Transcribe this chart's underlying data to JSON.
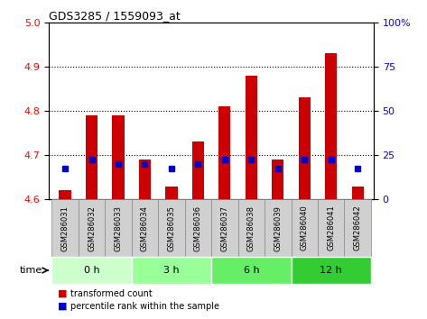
{
  "title": "GDS3285 / 1559093_at",
  "samples": [
    "GSM286031",
    "GSM286032",
    "GSM286033",
    "GSM286034",
    "GSM286035",
    "GSM286036",
    "GSM286037",
    "GSM286038",
    "GSM286039",
    "GSM286040",
    "GSM286041",
    "GSM286042"
  ],
  "transformed_count": [
    4.62,
    4.79,
    4.79,
    4.69,
    4.63,
    4.73,
    4.81,
    4.88,
    4.69,
    4.83,
    4.93,
    4.63
  ],
  "percentile_rank": [
    4.67,
    4.69,
    4.68,
    4.68,
    4.67,
    4.68,
    4.69,
    4.69,
    4.67,
    4.69,
    4.69,
    4.67
  ],
  "ylim": [
    4.6,
    5.0
  ],
  "yticks": [
    4.6,
    4.7,
    4.8,
    4.9,
    5.0
  ],
  "y2lim": [
    0,
    100
  ],
  "y2ticks": [
    0,
    25,
    50,
    75,
    100
  ],
  "y2ticklabels": [
    "0",
    "25",
    "50",
    "75",
    "100%"
  ],
  "bar_color": "#cc0000",
  "dot_color": "#0000cc",
  "bar_bottom": 4.6,
  "time_groups": [
    {
      "label": "0 h",
      "indices": [
        0,
        1,
        2
      ],
      "color": "#ccffcc"
    },
    {
      "label": "3 h",
      "indices": [
        3,
        4,
        5
      ],
      "color": "#99ff99"
    },
    {
      "label": "6 h",
      "indices": [
        6,
        7,
        8
      ],
      "color": "#66ee66"
    },
    {
      "label": "12 h",
      "indices": [
        9,
        10,
        11
      ],
      "color": "#33cc33"
    }
  ],
  "xlabel_time": "time",
  "legend_tc": "transformed count",
  "legend_pr": "percentile rank within the sample",
  "bar_width": 0.45,
  "sample_box_color": "#d0d0d0",
  "sample_box_border": "#888888"
}
